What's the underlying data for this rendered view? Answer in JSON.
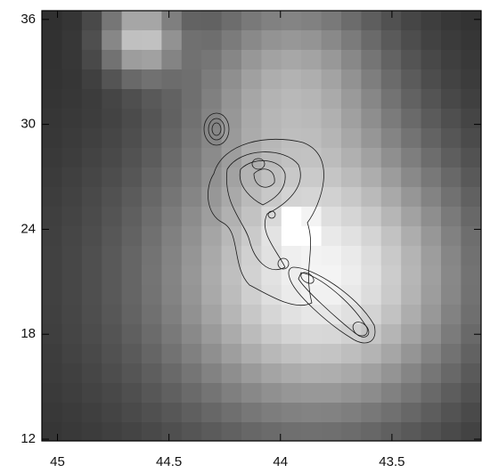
{
  "chart_data": {
    "type": "image",
    "xlim": [
      45.07,
      43.1
    ],
    "xticks": [
      45,
      44.5,
      44,
      43.5
    ],
    "ylim": [
      11.9,
      36.5
    ],
    "yticks": [
      12,
      18,
      24,
      30,
      36
    ]
  }
}
